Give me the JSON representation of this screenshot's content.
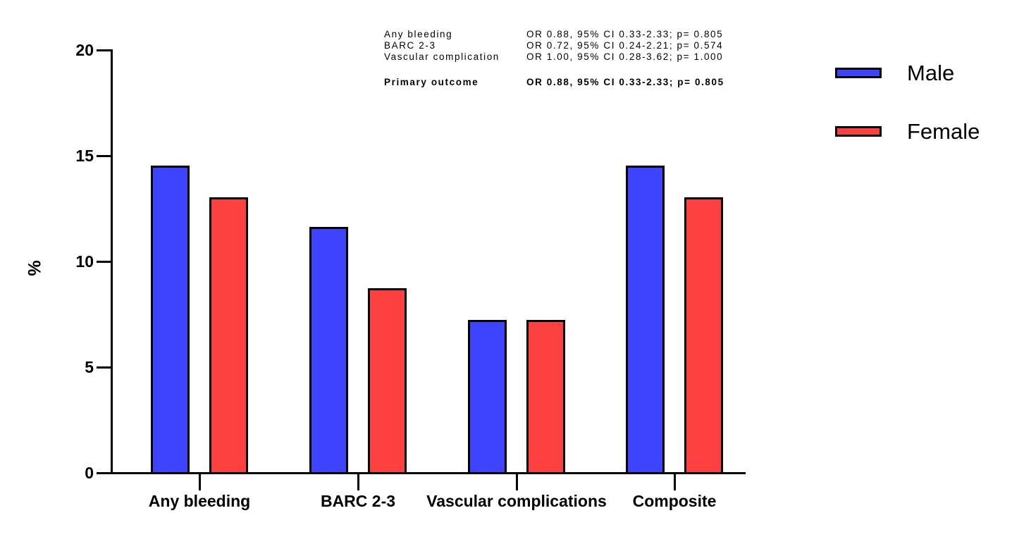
{
  "chart_data": {
    "type": "bar",
    "title": "",
    "xlabel": "",
    "ylabel": "%",
    "ylim": [
      0,
      20
    ],
    "yticks": [
      0,
      5,
      10,
      15,
      20
    ],
    "grid": false,
    "legend_position": "top-right",
    "axis_color": "#000000",
    "bar_border_color": "#000000",
    "categories": [
      "Any bleeding",
      "BARC 2-3",
      "Vascular complications",
      "Composite"
    ],
    "series": [
      {
        "name": "Male",
        "color": "#3E44FB",
        "values": [
          14.5,
          11.6,
          7.2,
          14.5
        ]
      },
      {
        "name": "Female",
        "color": "#FD4040",
        "values": [
          13.0,
          8.7,
          7.2,
          13.0
        ]
      }
    ]
  },
  "annotation": {
    "rows": [
      {
        "label": "Any bleeding",
        "value": "OR 0.88, 95% CI 0.33-2.33; p= 0.805",
        "bold": false
      },
      {
        "label": "BARC 2-3",
        "value": "OR 0.72, 95% CI 0.24-2.21; p= 0.574",
        "bold": false
      },
      {
        "label": "Vascular complication",
        "value": "OR 1.00, 95% CI 0.28-3.62; p= 1.000",
        "bold": false
      },
      {
        "label": "Primary outcome",
        "value": "OR 0.88, 95% CI 0.33-2.33; p= 0.805",
        "bold": true
      }
    ]
  },
  "legend": {
    "items": [
      {
        "label": "Male",
        "color": "#3E44FB"
      },
      {
        "label": "Female",
        "color": "#FD4040"
      }
    ]
  }
}
